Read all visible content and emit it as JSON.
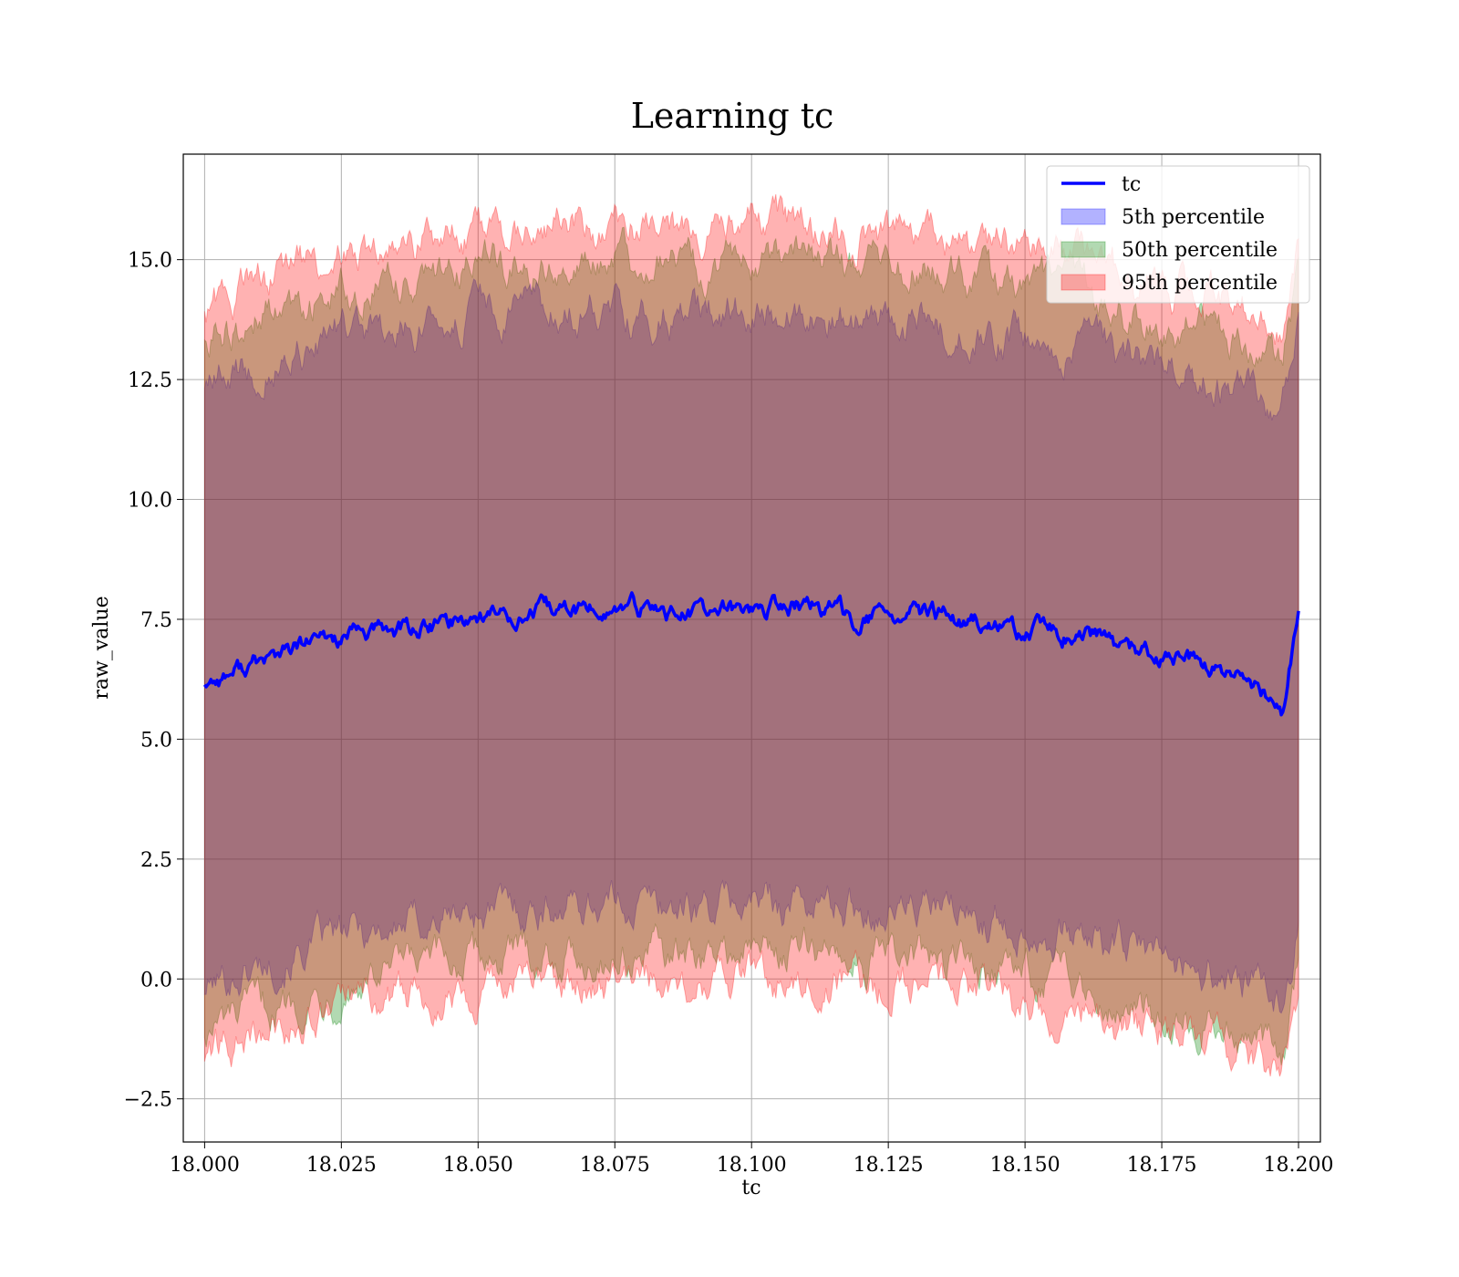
{
  "chart_data": {
    "type": "area",
    "title": "Learning tc",
    "xlabel": "tc",
    "ylabel": "raw_value",
    "xlim": [
      17.9961,
      18.204
    ],
    "ylim": [
      -3.4,
      17.2
    ],
    "grid": true,
    "legend_placement": "top-right",
    "x_ticks": [
      18.0,
      18.025,
      18.05,
      18.075,
      18.1,
      18.125,
      18.15,
      18.175,
      18.2
    ],
    "x_tick_labels": [
      "18.000",
      "18.025",
      "18.050",
      "18.075",
      "18.100",
      "18.125",
      "18.150",
      "18.175",
      "18.200"
    ],
    "y_ticks": [
      -2.5,
      0.0,
      2.5,
      5.0,
      7.5,
      10.0,
      12.5,
      15.0
    ],
    "y_tick_labels": [
      "−2.5",
      "0.0",
      "2.5",
      "5.0",
      "7.5",
      "10.0",
      "12.5",
      "15.0"
    ],
    "x": [
      18.0,
      18.01,
      18.02,
      18.03,
      18.04,
      18.05,
      18.06,
      18.07,
      18.08,
      18.09,
      18.1,
      18.11,
      18.12,
      18.13,
      18.14,
      18.15,
      18.16,
      18.17,
      18.18,
      18.19,
      18.197,
      18.2
    ],
    "series": [
      {
        "name": "tc",
        "kind": "line",
        "color": "#0000ff",
        "values": [
          6.2,
          6.6,
          7.0,
          7.2,
          7.3,
          7.6,
          7.6,
          7.7,
          7.7,
          7.6,
          7.7,
          7.8,
          7.5,
          7.6,
          7.4,
          7.2,
          7.2,
          6.8,
          6.6,
          6.2,
          5.6,
          7.6
        ]
      },
      {
        "name": "5th percentile",
        "kind": "band",
        "color": "#0000ff",
        "lower": [
          -0.2,
          0.3,
          0.7,
          1.0,
          1.2,
          1.4,
          1.5,
          1.6,
          1.6,
          1.5,
          1.6,
          1.6,
          1.5,
          1.5,
          1.3,
          1.1,
          0.9,
          0.6,
          0.3,
          -0.1,
          -0.6,
          1.2
        ],
        "upper": [
          12.4,
          12.8,
          13.2,
          13.5,
          13.6,
          13.9,
          13.9,
          14.0,
          13.9,
          13.8,
          14.0,
          14.0,
          13.8,
          13.7,
          13.5,
          13.3,
          13.3,
          12.9,
          12.6,
          12.2,
          11.8,
          13.8
        ]
      },
      {
        "name": "50th percentile",
        "kind": "band",
        "color": "#008000",
        "lower": [
          -1.1,
          -0.7,
          -0.3,
          0.0,
          0.2,
          0.4,
          0.5,
          0.5,
          0.5,
          0.4,
          0.6,
          0.6,
          0.5,
          0.4,
          0.3,
          0.1,
          -0.1,
          -0.5,
          -0.8,
          -1.2,
          -1.7,
          0.2
        ],
        "upper": [
          13.4,
          13.8,
          14.2,
          14.5,
          14.7,
          14.9,
          14.9,
          15.0,
          15.0,
          14.9,
          15.0,
          15.0,
          14.8,
          14.8,
          14.6,
          14.4,
          14.3,
          13.9,
          13.6,
          13.3,
          12.8,
          14.6
        ]
      },
      {
        "name": "95th percentile",
        "kind": "band",
        "color": "#ff0000",
        "lower": [
          -1.6,
          -1.2,
          -0.8,
          -0.5,
          -0.3,
          -0.1,
          0.0,
          0.0,
          0.0,
          -0.1,
          0.0,
          0.0,
          -0.1,
          -0.1,
          -0.3,
          -0.5,
          -0.6,
          -1.0,
          -1.3,
          -1.7,
          -2.2,
          -0.3
        ],
        "upper": [
          14.0,
          14.5,
          14.9,
          15.2,
          15.3,
          15.6,
          15.6,
          15.7,
          15.7,
          15.6,
          15.7,
          15.7,
          15.5,
          15.5,
          15.3,
          15.1,
          15.0,
          14.6,
          14.3,
          14.0,
          13.5,
          15.2
        ]
      }
    ]
  }
}
